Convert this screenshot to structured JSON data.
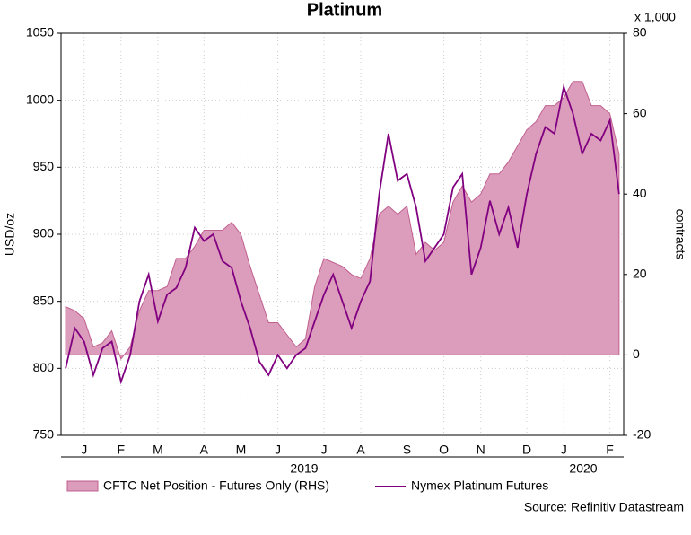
{
  "chart_data": {
    "type": "line_area",
    "title": "Platinum",
    "ylabel": "USD/oz",
    "y2label": "contracts",
    "y2unit": "x 1,000",
    "source": "Source: Refinitiv Datastream",
    "annotations": [
      "2019",
      "2020"
    ],
    "categories": [
      null,
      null,
      "J",
      null,
      null,
      null,
      "F",
      null,
      null,
      null,
      "M",
      null,
      null,
      null,
      null,
      "A",
      null,
      null,
      null,
      "M",
      null,
      null,
      null,
      "J",
      null,
      null,
      null,
      null,
      "J",
      null,
      null,
      null,
      "A",
      null,
      null,
      null,
      null,
      "S",
      null,
      null,
      null,
      "O",
      null,
      null,
      null,
      "N",
      null,
      null,
      null,
      null,
      "D",
      null,
      null,
      null,
      "J",
      null,
      null,
      null,
      null,
      "F",
      null
    ],
    "ylim": [
      750,
      1050
    ],
    "yticks": [
      750,
      800,
      850,
      900,
      950,
      1000,
      1050
    ],
    "y2lim": [
      -20,
      80
    ],
    "y2ticks": [
      -20,
      0,
      20,
      40,
      60,
      80
    ],
    "grid": true,
    "series": [
      {
        "name": "CFTC Net Position - Futures Only (RHS)",
        "type": "area",
        "axis": "y2",
        "color": "#dc9cbc",
        "values": [
          12,
          11,
          9,
          2,
          3,
          6,
          -1,
          2,
          11,
          16,
          16,
          17,
          24,
          24,
          27,
          31,
          31,
          31,
          33,
          30,
          22,
          15,
          8,
          8,
          5,
          2,
          4,
          17,
          24,
          23,
          22,
          20,
          19,
          24,
          35,
          37,
          35,
          37,
          25,
          28,
          26,
          28,
          38,
          42,
          38,
          40,
          45,
          45,
          48,
          52,
          56,
          58,
          62,
          62,
          64,
          68,
          68,
          62,
          62,
          60,
          50
        ]
      },
      {
        "name": "Nymex Platinum Futures",
        "type": "line",
        "color": "#800080",
        "values": [
          800,
          830,
          820,
          795,
          815,
          820,
          790,
          810,
          850,
          870,
          835,
          855,
          860,
          875,
          905,
          895,
          900,
          880,
          875,
          850,
          830,
          805,
          795,
          810,
          800,
          810,
          815,
          835,
          855,
          870,
          850,
          830,
          850,
          865,
          930,
          975,
          940,
          945,
          920,
          880,
          890,
          900,
          935,
          945,
          870,
          890,
          925,
          900,
          920,
          890,
          930,
          960,
          980,
          975,
          1010,
          990,
          960,
          975,
          970,
          985,
          930
        ]
      }
    ]
  }
}
